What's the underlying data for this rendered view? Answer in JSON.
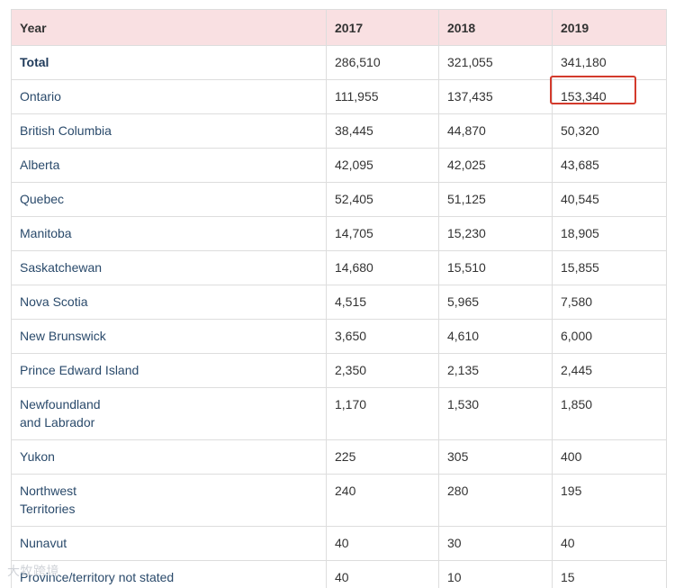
{
  "table": {
    "headers": [
      "Year",
      "2017",
      "2018",
      "2019"
    ],
    "rows": [
      {
        "region": "Total",
        "y2017": "286,510",
        "y2018": "321,055",
        "y2019": "341,180"
      },
      {
        "region": "Ontario",
        "y2017": "111,955",
        "y2018": "137,435",
        "y2019": "153,340"
      },
      {
        "region": "British Columbia",
        "y2017": "38,445",
        "y2018": "44,870",
        "y2019": "50,320"
      },
      {
        "region": "Alberta",
        "y2017": "42,095",
        "y2018": "42,025",
        "y2019": "43,685"
      },
      {
        "region": "Quebec",
        "y2017": "52,405",
        "y2018": "51,125",
        "y2019": "40,545"
      },
      {
        "region": "Manitoba",
        "y2017": "14,705",
        "y2018": "15,230",
        "y2019": "18,905"
      },
      {
        "region": "Saskatchewan",
        "y2017": "14,680",
        "y2018": "15,510",
        "y2019": "15,855"
      },
      {
        "region": "Nova Scotia",
        "y2017": "4,515",
        "y2018": "5,965",
        "y2019": "7,580"
      },
      {
        "region": "New Brunswick",
        "y2017": "3,650",
        "y2018": "4,610",
        "y2019": "6,000"
      },
      {
        "region": "Prince Edward Island",
        "y2017": "2,350",
        "y2018": "2,135",
        "y2019": "2,445"
      },
      {
        "region": "Newfoundland and Labrador",
        "region_line1": "Newfoundland",
        "region_line2": "and Labrador",
        "y2017": "1,170",
        "y2018": "1,530",
        "y2019": "1,850"
      },
      {
        "region": "Yukon",
        "y2017": "225",
        "y2018": "305",
        "y2019": "400"
      },
      {
        "region": "Northwest Territories",
        "region_line1": "Northwest",
        "region_line2": "Territories",
        "y2017": "240",
        "y2018": "280",
        "y2019": "195"
      },
      {
        "region": "Nunavut",
        "y2017": "40",
        "y2018": "30",
        "y2019": "40"
      },
      {
        "region": "Province/territory not stated",
        "y2017": "40",
        "y2018": "10",
        "y2019": "15"
      }
    ]
  },
  "highlight": {
    "row": "Ontario",
    "column": "2019",
    "color": "#d33a2c"
  },
  "watermark": {
    "text": "大牧跨境"
  },
  "colors": {
    "header_bg": "#f9e0e2",
    "border": "#dddddd",
    "region_text": "#2a4a6b"
  }
}
